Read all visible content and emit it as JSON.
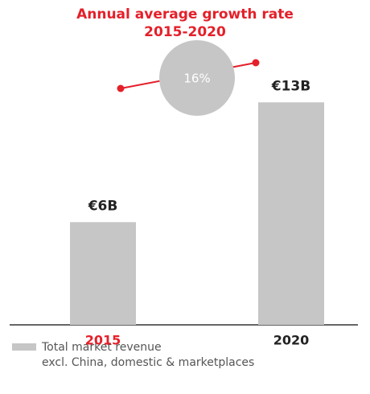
{
  "chart_data": {
    "type": "bar",
    "title": "Annual average growth rate",
    "subtitle": "2015-2020",
    "annotation": "16%",
    "categories": [
      "2015",
      "2020"
    ],
    "category_colors": [
      "#e4202a",
      "#222222"
    ],
    "series": [
      {
        "name": "Total market revenue",
        "color": "#c6c6c6",
        "values": [
          6,
          13
        ],
        "value_labels": [
          "€6B",
          "€13B"
        ]
      }
    ],
    "legend_note": "excl. China, domestic & marketplaces",
    "ylim": [
      0,
      14
    ]
  }
}
